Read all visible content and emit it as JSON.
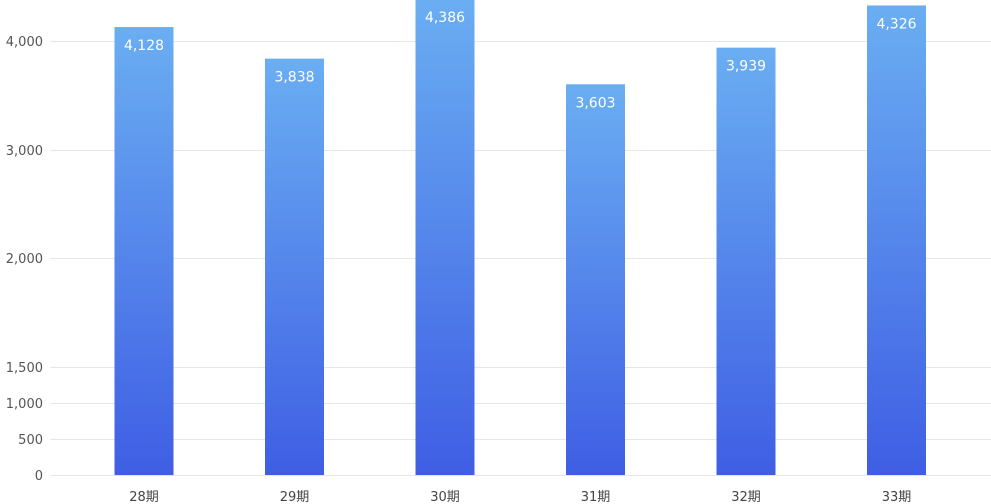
{
  "chart_data": {
    "type": "bar",
    "title": "",
    "xlabel": "",
    "ylabel": "",
    "categories": [
      "28期",
      "29期",
      "30期",
      "31期",
      "32期",
      "33期"
    ],
    "values": [
      4128,
      3838,
      4386,
      3603,
      3939,
      4326
    ],
    "value_labels": [
      "4,128",
      "3,838",
      "4,386",
      "3,603",
      "3,939",
      "4,326"
    ],
    "yticks": [
      {
        "value": 0,
        "label": "0"
      },
      {
        "value": 500,
        "label": "500"
      },
      {
        "value": 1000,
        "label": "1,000"
      },
      {
        "value": 1500,
        "label": "1,500"
      },
      {
        "value": 2000,
        "label": "2,000"
      },
      {
        "value": 3000,
        "label": "3,000"
      },
      {
        "value": 4000,
        "label": "4,000"
      }
    ],
    "ylim": [
      0,
      4400
    ],
    "grid": true,
    "legend": "none",
    "colors": {
      "bar_top": "#6aaef2",
      "bar_bottom": "#3f5ee4",
      "grid": "#e6e6e6",
      "label": "#ffffff"
    }
  }
}
